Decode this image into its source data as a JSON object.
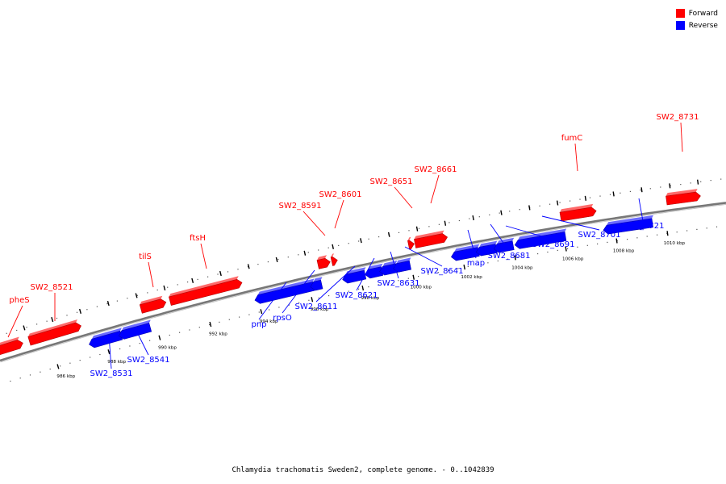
{
  "legend": {
    "forward_label": "Forward",
    "reverse_label": "Reverse",
    "forward_color": "#ff0000",
    "reverse_color": "#0000ff"
  },
  "caption": "Chlamydia trachomatis Sweden2, complete genome. - 0..1042839",
  "scale": {
    "unit": "kbp",
    "ticks": [
      986,
      988,
      990,
      992,
      994,
      996,
      998,
      1000,
      1002,
      1004,
      1006,
      1008,
      1010
    ]
  },
  "genes": [
    {
      "name": "pheS",
      "strand": "forward"
    },
    {
      "name": "SW2_8521",
      "strand": "forward"
    },
    {
      "name": "tilS",
      "strand": "forward"
    },
    {
      "name": "ftsH",
      "strand": "forward"
    },
    {
      "name": "SW2_8591",
      "strand": "forward"
    },
    {
      "name": "SW2_8601",
      "strand": "forward"
    },
    {
      "name": "SW2_8651",
      "strand": "forward"
    },
    {
      "name": "SW2_8661",
      "strand": "forward"
    },
    {
      "name": "fumC",
      "strand": "forward"
    },
    {
      "name": "SW2_8731",
      "strand": "forward"
    },
    {
      "name": "SW2_8531",
      "strand": "reverse"
    },
    {
      "name": "SW2_8541",
      "strand": "reverse"
    },
    {
      "name": "pnp",
      "strand": "reverse"
    },
    {
      "name": "rpsO",
      "strand": "reverse"
    },
    {
      "name": "SW2_8611",
      "strand": "reverse"
    },
    {
      "name": "SW2_8621",
      "strand": "reverse"
    },
    {
      "name": "SW2_8631",
      "strand": "reverse"
    },
    {
      "name": "SW2_8641",
      "strand": "reverse"
    },
    {
      "name": "map",
      "strand": "reverse"
    },
    {
      "name": "SW2_8681",
      "strand": "reverse"
    },
    {
      "name": "SW2_8691",
      "strand": "reverse"
    },
    {
      "name": "SW2_8701",
      "strand": "reverse"
    },
    {
      "name": "SW2_8721",
      "strand": "reverse"
    }
  ]
}
